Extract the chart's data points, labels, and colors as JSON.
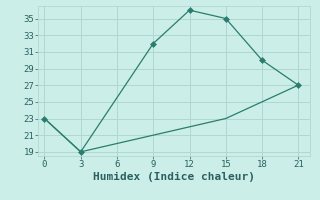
{
  "xlabel": "Humidex (Indice chaleur)",
  "line1_x": [
    0,
    3,
    9,
    12,
    15,
    18,
    21
  ],
  "line1_y": [
    23,
    19,
    32,
    36,
    35,
    30,
    27
  ],
  "line2_x": [
    0,
    3,
    9,
    12,
    15,
    18,
    21
  ],
  "line2_y": [
    23,
    19,
    21,
    22,
    23,
    25,
    27
  ],
  "line_color": "#2a7d6e",
  "marker": "D",
  "marker_size": 3,
  "xlim": [
    -0.5,
    22
  ],
  "ylim": [
    18.5,
    36.5
  ],
  "xticks": [
    0,
    3,
    6,
    9,
    12,
    15,
    18,
    21
  ],
  "yticks": [
    19,
    21,
    23,
    25,
    27,
    29,
    31,
    33,
    35
  ],
  "background_color": "#cceee8",
  "grid_color": "#b0d8d2",
  "font_color": "#2a6060",
  "tick_fontsize": 6.5,
  "label_fontsize": 8
}
